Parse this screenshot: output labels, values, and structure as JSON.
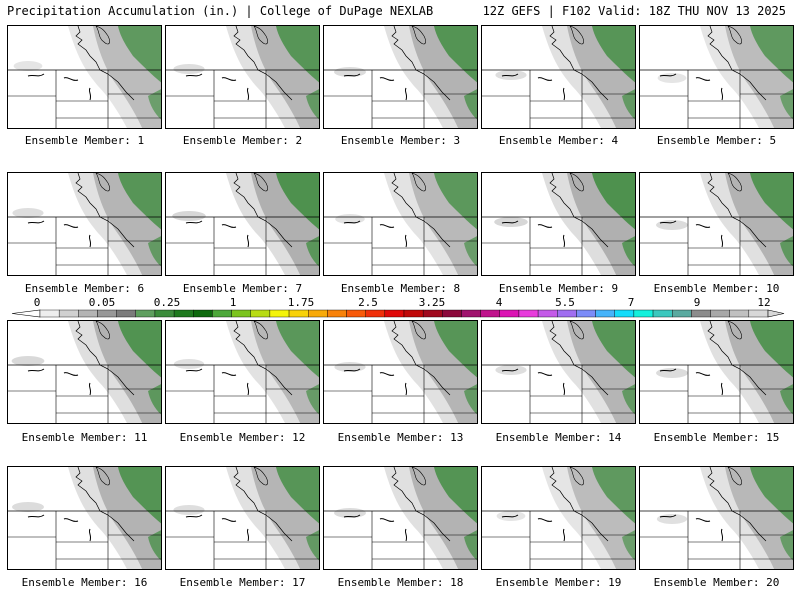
{
  "header": {
    "left": "Precipitation Accumulation (in.) | College of DuPage NEXLAB",
    "right": "12Z GEFS | F102 Valid: 18Z THU NOV 13 2025"
  },
  "colorbar": {
    "labels": [
      "0",
      "0.05",
      "0.25",
      "1",
      "1.75",
      "2.5",
      "3.25",
      "4",
      "5.5",
      "7",
      "9",
      "12"
    ],
    "colors": [
      "#eeeeee",
      "#d0d0d0",
      "#b4b4b4",
      "#989898",
      "#7c7c7c",
      "#5f9f5f",
      "#3c8c3c",
      "#1f7a1f",
      "#0e6a0e",
      "#4da83a",
      "#7cc41e",
      "#b8dc14",
      "#f4f40a",
      "#f8d20a",
      "#f8aa0a",
      "#f8820a",
      "#f85a0a",
      "#f0300a",
      "#e00a0a",
      "#c00a0a",
      "#a00a1e",
      "#8c0a3c",
      "#a0146e",
      "#c0148c",
      "#dc14b4",
      "#e83cdc",
      "#c45ae8",
      "#a06ef0",
      "#7c8cf8",
      "#46b4fa",
      "#14dcfa",
      "#14f0dc",
      "#3cc8be",
      "#5aaaa0",
      "#8c8c8c",
      "#a8a8a8",
      "#c0c0c0",
      "#d8d8d8"
    ]
  },
  "members": [
    {
      "label": "Ensemble Member: 1",
      "intensity": 0.55
    },
    {
      "label": "Ensemble Member: 2",
      "intensity": 0.7
    },
    {
      "label": "Ensemble Member: 3",
      "intensity": 0.75
    },
    {
      "label": "Ensemble Member: 4",
      "intensity": 0.7
    },
    {
      "label": "Ensemble Member: 5",
      "intensity": 0.55
    },
    {
      "label": "Ensemble Member: 6",
      "intensity": 0.7
    },
    {
      "label": "Ensemble Member: 7",
      "intensity": 0.85
    },
    {
      "label": "Ensemble Member: 8",
      "intensity": 0.6
    },
    {
      "label": "Ensemble Member: 9",
      "intensity": 0.85
    },
    {
      "label": "Ensemble Member: 10",
      "intensity": 0.75
    },
    {
      "label": "Ensemble Member: 11",
      "intensity": 0.8
    },
    {
      "label": "Ensemble Member: 12",
      "intensity": 0.65
    },
    {
      "label": "Ensemble Member: 13",
      "intensity": 0.7
    },
    {
      "label": "Ensemble Member: 14",
      "intensity": 0.7
    },
    {
      "label": "Ensemble Member: 15",
      "intensity": 0.75
    },
    {
      "label": "Ensemble Member: 16",
      "intensity": 0.75
    },
    {
      "label": "Ensemble Member: 17",
      "intensity": 0.7
    },
    {
      "label": "Ensemble Member: 18",
      "intensity": 0.75
    },
    {
      "label": "Ensemble Member: 19",
      "intensity": 0.55
    },
    {
      "label": "Ensemble Member: 20",
      "intensity": 0.65
    }
  ]
}
